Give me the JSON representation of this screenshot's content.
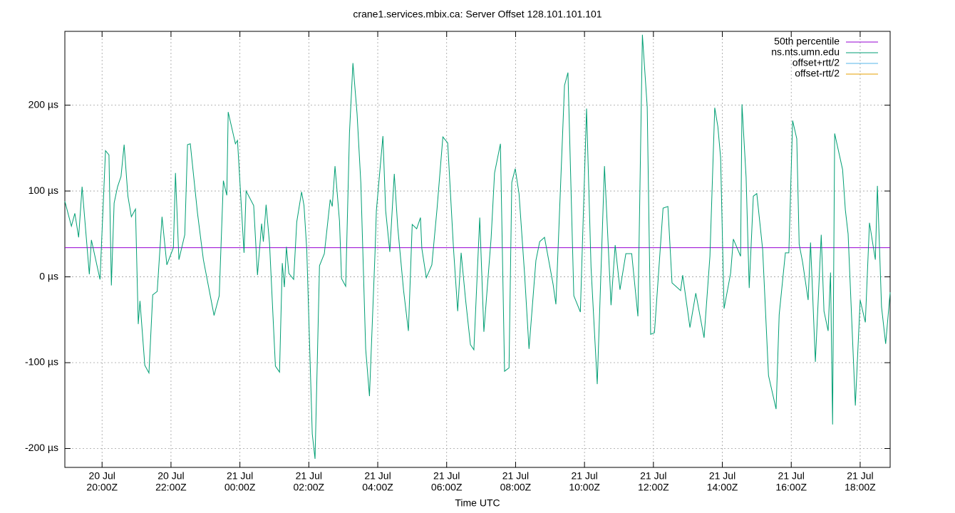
{
  "chart_data": {
    "type": "line",
    "title": "crane1.services.mbix.ca: Server Offset 128.101.101.101",
    "xlabel": "Time UTC",
    "xlim": [
      18.92,
      42.87
    ],
    "ylim": [
      -222,
      286
    ],
    "grid": true,
    "legend": "top-right",
    "xticks": [
      {
        "value": 20,
        "label": "20:00Z",
        "date": "20 Jul"
      },
      {
        "value": 22,
        "label": "22:00Z",
        "date": "20 Jul"
      },
      {
        "value": 24,
        "label": "00:00Z",
        "date": "21 Jul"
      },
      {
        "value": 26,
        "label": "02:00Z",
        "date": "21 Jul"
      },
      {
        "value": 28,
        "label": "04:00Z",
        "date": "21 Jul"
      },
      {
        "value": 30,
        "label": "06:00Z",
        "date": "21 Jul"
      },
      {
        "value": 32,
        "label": "08:00Z",
        "date": "21 Jul"
      },
      {
        "value": 34,
        "label": "10:00Z",
        "date": "21 Jul"
      },
      {
        "value": 36,
        "label": "12:00Z",
        "date": "21 Jul"
      },
      {
        "value": 38,
        "label": "14:00Z",
        "date": "21 Jul"
      },
      {
        "value": 40,
        "label": "16:00Z",
        "date": "21 Jul"
      },
      {
        "value": 42,
        "label": "18:00Z",
        "date": "21 Jul"
      }
    ],
    "yticks": [
      {
        "value": -200,
        "label": "-200 µs"
      },
      {
        "value": -100,
        "label": "-100 µs"
      },
      {
        "value": 0,
        "label": "0 µs"
      },
      {
        "value": 100,
        "label": "100 µs"
      },
      {
        "value": 200,
        "label": "200 µs"
      }
    ],
    "x": [
      18.92,
      19.11,
      19.21,
      19.32,
      19.42,
      19.63,
      19.69,
      19.94,
      20.1,
      20.2,
      20.27,
      20.35,
      20.45,
      20.55,
      20.64,
      20.75,
      20.85,
      20.97,
      21.05,
      21.1,
      21.24,
      21.36,
      21.47,
      21.6,
      21.74,
      21.88,
      22.07,
      22.13,
      22.23,
      22.4,
      22.48,
      22.56,
      22.77,
      22.94,
      23.25,
      23.4,
      23.52,
      23.62,
      23.66,
      23.87,
      23.93,
      24.12,
      24.18,
      24.4,
      24.51,
      24.63,
      24.68,
      24.76,
      24.86,
      25.03,
      25.15,
      25.23,
      25.29,
      25.35,
      25.42,
      25.56,
      25.65,
      25.79,
      25.86,
      25.94,
      26.1,
      26.18,
      26.31,
      26.45,
      26.62,
      26.68,
      26.76,
      26.89,
      26.95,
      27.07,
      27.18,
      27.28,
      27.4,
      27.51,
      27.65,
      27.76,
      27.92,
      27.96,
      28.15,
      28.23,
      28.35,
      28.48,
      28.58,
      28.75,
      28.89,
      29.0,
      29.13,
      29.24,
      29.28,
      29.41,
      29.57,
      29.72,
      29.89,
      30.03,
      30.2,
      30.32,
      30.42,
      30.55,
      30.69,
      30.79,
      30.96,
      31.08,
      31.29,
      31.39,
      31.56,
      31.68,
      31.81,
      31.89,
      31.99,
      32.1,
      32.26,
      32.39,
      32.59,
      32.7,
      32.84,
      33.09,
      33.17,
      33.42,
      33.52,
      33.69,
      33.88,
      34.06,
      34.19,
      34.37,
      34.58,
      34.77,
      34.89,
      35.03,
      35.2,
      35.37,
      35.55,
      35.68,
      35.82,
      35.92,
      36.03,
      36.28,
      36.42,
      36.54,
      36.79,
      36.85,
      37.06,
      37.23,
      37.47,
      37.64,
      37.78,
      37.87,
      37.95,
      38.05,
      38.24,
      38.32,
      38.53,
      38.57,
      38.69,
      38.78,
      38.9,
      39.0,
      39.17,
      39.34,
      39.56,
      39.65,
      39.83,
      39.93,
      40.04,
      40.16,
      40.23,
      40.33,
      40.49,
      40.56,
      40.7,
      40.87,
      40.95,
      41.07,
      41.14,
      41.2,
      41.26,
      41.49,
      41.57,
      41.65,
      41.86,
      42.0,
      42.15,
      42.27,
      42.44,
      42.5,
      42.62,
      42.74,
      42.87
    ],
    "series": [
      {
        "name": "50th percentile",
        "color": "#9400d3",
        "hline": 34
      },
      {
        "name": "ns.nts.umn.edu",
        "color": "#009e73",
        "values": [
          88,
          59,
          74,
          46,
          105,
          3,
          43,
          -3,
          147,
          142,
          -10,
          86,
          105,
          117,
          154,
          94,
          70,
          79,
          -55,
          -28,
          -103,
          -112,
          -21,
          -17,
          70,
          14,
          34,
          121,
          20,
          49,
          154,
          155,
          74,
          20,
          -45,
          -22,
          112,
          95,
          192,
          155,
          159,
          28,
          100,
          83,
          2,
          62,
          41,
          84,
          39,
          -104,
          -111,
          16,
          -12,
          35,
          4,
          -3,
          64,
          99,
          83,
          32,
          -183,
          -212,
          13,
          27,
          90,
          82,
          129,
          65,
          -2,
          -11,
          168,
          249,
          190,
          109,
          -84,
          -139,
          27,
          77,
          164,
          77,
          29,
          120,
          58,
          -16,
          -63,
          61,
          56,
          69,
          33,
          -1,
          14,
          79,
          163,
          156,
          32,
          -40,
          28,
          -27,
          -79,
          -85,
          69,
          -64,
          45,
          121,
          155,
          -110,
          -106,
          110,
          126,
          97,
          4,
          -84,
          19,
          41,
          46,
          -9,
          -32,
          223,
          238,
          -22,
          -41,
          196,
          11,
          -125,
          129,
          -33,
          37,
          -15,
          27,
          27,
          -46,
          282,
          198,
          -67,
          -65,
          80,
          82,
          -7,
          -16,
          2,
          -59,
          -19,
          -71,
          24,
          197,
          175,
          139,
          -37,
          4,
          44,
          24,
          201,
          116,
          -13,
          94,
          97,
          32,
          -115,
          -154,
          -44,
          28,
          28,
          182,
          161,
          38,
          17,
          -27,
          40,
          -99,
          49,
          -40,
          -63,
          5,
          -172,
          167,
          125,
          78,
          50,
          -150,
          -27,
          -53,
          63,
          20,
          106,
          -35,
          -78,
          -18
        ]
      },
      {
        "name": "offset+rtt/2",
        "color": "#56b4e9"
      },
      {
        "name": "offset-rtt/2",
        "color": "#e69f00"
      }
    ]
  }
}
